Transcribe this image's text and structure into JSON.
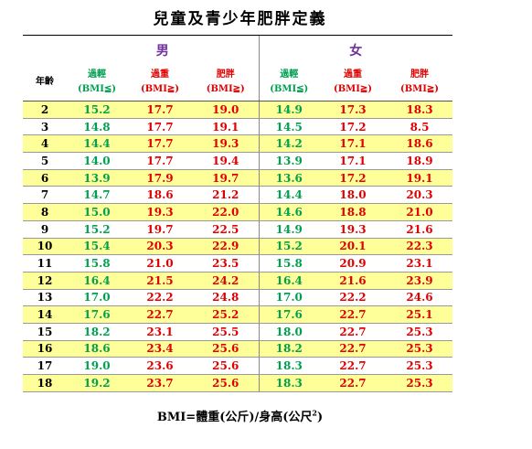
{
  "title": "兒童及青少年肥胖定義",
  "groups": [
    "男",
    "女"
  ],
  "columns": {
    "age": "年齡",
    "cols": [
      {
        "name": "過輕",
        "sub": "(BMI≦)"
      },
      {
        "name": "過重",
        "sub": "(BMI≧)"
      },
      {
        "name": "肥胖",
        "sub": "(BMI≧)"
      }
    ]
  },
  "rows": [
    [
      "2",
      "15.2",
      "17.7",
      "19.0",
      "14.9",
      "17.3",
      "18.3"
    ],
    [
      "3",
      "14.8",
      "17.7",
      "19.1",
      "14.5",
      "17.2",
      "8.5"
    ],
    [
      "4",
      "14.4",
      "17.7",
      "19.3",
      "14.2",
      "17.1",
      "18.6"
    ],
    [
      "5",
      "14.0",
      "17.7",
      "19.4",
      "13.9",
      "17.1",
      "18.9"
    ],
    [
      "6",
      "13.9",
      "17.9",
      "19.7",
      "13.6",
      "17.2",
      "19.1"
    ],
    [
      "7",
      "14.7",
      "18.6",
      "21.2",
      "14.4",
      "18.0",
      "20.3"
    ],
    [
      "8",
      "15.0",
      "19.3",
      "22.0",
      "14.6",
      "18.8",
      "21.0"
    ],
    [
      "9",
      "15.2",
      "19.7",
      "22.5",
      "14.9",
      "19.3",
      "21.6"
    ],
    [
      "10",
      "15.4",
      "20.3",
      "22.9",
      "15.2",
      "20.1",
      "22.3"
    ],
    [
      "11",
      "15.8",
      "21.0",
      "23.5",
      "15.8",
      "20.9",
      "23.1"
    ],
    [
      "12",
      "16.4",
      "21.5",
      "24.2",
      "16.4",
      "21.6",
      "23.9"
    ],
    [
      "13",
      "17.0",
      "22.2",
      "24.8",
      "17.0",
      "22.2",
      "24.6"
    ],
    [
      "14",
      "17.6",
      "22.7",
      "25.2",
      "17.6",
      "22.7",
      "25.1"
    ],
    [
      "15",
      "18.2",
      "23.1",
      "25.5",
      "18.0",
      "22.7",
      "25.3"
    ],
    [
      "16",
      "18.6",
      "23.4",
      "25.6",
      "18.2",
      "22.7",
      "25.3"
    ],
    [
      "17",
      "19.0",
      "23.6",
      "25.6",
      "18.3",
      "22.7",
      "25.3"
    ],
    [
      "18",
      "19.2",
      "23.7",
      "25.6",
      "18.3",
      "22.7",
      "25.3"
    ]
  ],
  "footer": {
    "text": "BMI=體重(公斤)/身高(公尺",
    "sup": "2",
    "close": ")"
  }
}
